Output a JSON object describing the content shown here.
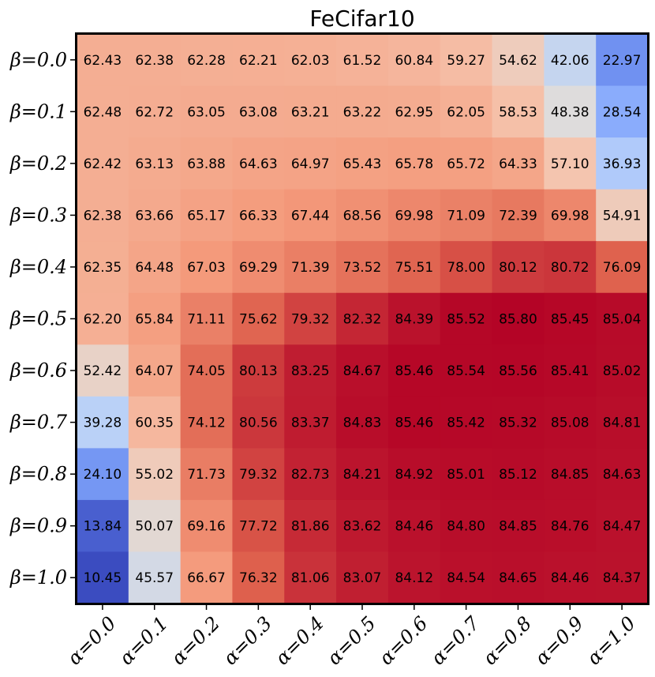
{
  "chart_data": {
    "type": "heatmap",
    "title": "FeCifar10",
    "xlabel": "",
    "ylabel": "",
    "x_labels": [
      "α=0.0",
      "α=0.1",
      "α=0.2",
      "α=0.3",
      "α=0.4",
      "α=0.5",
      "α=0.6",
      "α=0.7",
      "α=0.8",
      "α=0.9",
      "α=1.0"
    ],
    "y_labels": [
      "β=0.0",
      "β=0.1",
      "β=0.2",
      "β=0.3",
      "β=0.4",
      "β=0.5",
      "β=0.6",
      "β=0.7",
      "β=0.8",
      "β=0.9",
      "β=1.0"
    ],
    "colormap": "coolwarm",
    "value_range": [
      10.45,
      85.8
    ],
    "values": [
      [
        62.43,
        62.38,
        62.28,
        62.21,
        62.03,
        61.52,
        60.84,
        59.27,
        54.62,
        42.06,
        22.97
      ],
      [
        62.48,
        62.72,
        63.05,
        63.08,
        63.21,
        63.22,
        62.95,
        62.05,
        58.53,
        48.38,
        28.54
      ],
      [
        62.42,
        63.13,
        63.88,
        64.63,
        64.97,
        65.43,
        65.78,
        65.72,
        64.33,
        57.1,
        36.93
      ],
      [
        62.38,
        63.66,
        65.17,
        66.33,
        67.44,
        68.56,
        69.98,
        71.09,
        72.39,
        69.98,
        54.91
      ],
      [
        62.35,
        64.48,
        67.03,
        69.29,
        71.39,
        73.52,
        75.51,
        78.0,
        80.12,
        80.72,
        76.09
      ],
      [
        62.2,
        65.84,
        71.11,
        75.62,
        79.32,
        82.32,
        84.39,
        85.52,
        85.8,
        85.45,
        85.04
      ],
      [
        52.42,
        64.07,
        74.05,
        80.13,
        83.25,
        84.67,
        85.46,
        85.54,
        85.56,
        85.41,
        85.02
      ],
      [
        39.28,
        60.35,
        74.12,
        80.56,
        83.37,
        84.83,
        85.46,
        85.42,
        85.32,
        85.08,
        84.81
      ],
      [
        24.1,
        55.02,
        71.73,
        79.32,
        82.73,
        84.21,
        84.92,
        85.01,
        85.12,
        84.85,
        84.63
      ],
      [
        13.84,
        50.07,
        69.16,
        77.72,
        81.86,
        83.62,
        84.46,
        84.8,
        84.85,
        84.76,
        84.47
      ],
      [
        10.45,
        45.57,
        66.67,
        76.32,
        81.06,
        83.07,
        84.12,
        84.54,
        84.65,
        84.46,
        84.37
      ]
    ]
  }
}
